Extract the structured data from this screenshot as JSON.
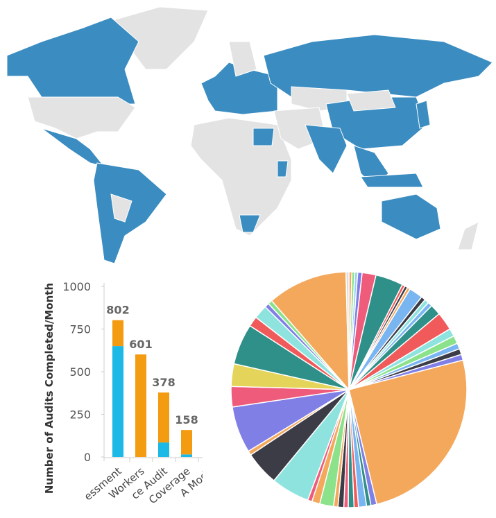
{
  "chart_data": [
    {
      "type": "bar",
      "stacked": true,
      "y_label": "Number of Audits Completed/Month",
      "categories": [
        "essment",
        "Workers",
        "ce Audit",
        "Coverage",
        "A Modu"
      ],
      "series": [
        {
          "color": "#1cb8e6",
          "values": [
            650,
            0,
            85,
            15,
            null
          ]
        },
        {
          "color": "#f39c12",
          "values": [
            152,
            601,
            293,
            143,
            null
          ]
        }
      ],
      "total_labels": [
        802,
        601,
        378,
        158,
        null
      ],
      "ylim": [
        0,
        1000
      ],
      "yticks": [
        0,
        250,
        500,
        750,
        1000
      ],
      "grid": false
    },
    {
      "type": "pie",
      "values": [
        0.4,
        0.4,
        0.4,
        0.6,
        1.9,
        3.8,
        0.4,
        0.4,
        0.4,
        1.9,
        0.6,
        0.6,
        0.6,
        1.5,
        2.5,
        1.1,
        1.1,
        0.8,
        0.8,
        0.8,
        25.3,
        0.8,
        0.6,
        1.1,
        0.6,
        0.8,
        0.6,
        0.8,
        0.6,
        1.9,
        1.1,
        0.6,
        5.3,
        4.7,
        0.6,
        6.4,
        2.8,
        3.1,
        5.6,
        1.4,
        1.9,
        0.6,
        0.6,
        11,
        0.4
      ],
      "colors": [
        "#f4a85c",
        "#8be28a",
        "#9ad1f2",
        "#7f7fe6",
        "#ef5b7a",
        "#2e9089",
        "#f05a5a",
        "#3c3c46",
        "#f4a85c",
        "#79b5f0",
        "#3c3c46",
        "#8fe3df",
        "#79b5f0",
        "#2e9089",
        "#f05a5a",
        "#8fe3df",
        "#8be28a",
        "#79b5f0",
        "#3c3c46",
        "#7f7fe6",
        "#f4a85c",
        "#7f7fe6",
        "#2e9089",
        "#79b5f0",
        "#f05a5a",
        "#2e9089",
        "#ef5b7a",
        "#3c3c46",
        "#f4a85c",
        "#8be28a",
        "#f4a85c",
        "#ef5b7a",
        "#8fe3df",
        "#3c3c46",
        "#f4a85c",
        "#7f7fe6",
        "#ef5b7a",
        "#e4d55a",
        "#2e9089",
        "#f05a5a",
        "#8fe3df",
        "#7f7fe6",
        "#8be28a",
        "#f4a85c",
        "#dddddd"
      ]
    }
  ]
}
